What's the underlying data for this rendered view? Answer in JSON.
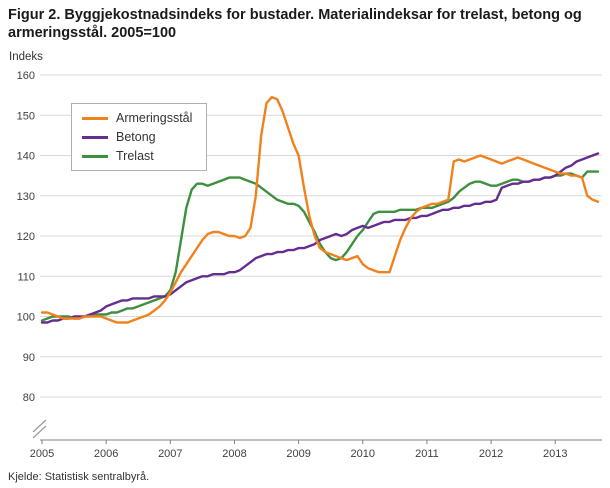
{
  "source": "Kjelde: Statistisk sentralbyrå.",
  "chart_data": {
    "type": "line",
    "title": "Figur 2. Byggjekostnadsindeks for bustader. Materialindeksar for trelast, betong og armeringsstål. 2005=100",
    "xlabel": "",
    "ylabel": "Indeks",
    "ylim": [
      80,
      160
    ],
    "yticks": [
      160,
      150,
      140,
      130,
      120,
      110,
      100,
      90,
      80
    ],
    "xticks": [
      2005,
      2006,
      2007,
      2008,
      2009,
      2010,
      2011,
      2012,
      2013
    ],
    "x_start": "2005-01",
    "x_frequency": "monthly",
    "grid": "horizontal",
    "axis_break": true,
    "legend_position": "upper-left",
    "series": [
      {
        "name": "Armeringsstål",
        "color": "#f0821e",
        "values": [
          101,
          101,
          100.5,
          100,
          99.5,
          99.5,
          99.5,
          99.5,
          100,
          100,
          100,
          100,
          99.5,
          99,
          98.5,
          98.5,
          98.5,
          99,
          99.5,
          100,
          100.5,
          101.5,
          102.5,
          104,
          106,
          108.5,
          111,
          113,
          115,
          117,
          119,
          120.5,
          121,
          121,
          120.5,
          120,
          120,
          119.5,
          120,
          122,
          130,
          145,
          153,
          154.5,
          154,
          151,
          147,
          143,
          140,
          132,
          125,
          120,
          117,
          116,
          115.5,
          115,
          114.5,
          114,
          114.5,
          115,
          113,
          112,
          111.5,
          111,
          111,
          111,
          115,
          119,
          122,
          124.5,
          126,
          127,
          127.5,
          128,
          128,
          128.5,
          129,
          138.5,
          139,
          138.5,
          139,
          139.5,
          140,
          139.5,
          139,
          138.5,
          138,
          138.5,
          139,
          139.5,
          139,
          138.5,
          138,
          137.5,
          137,
          136.5,
          136,
          135.5,
          135.5,
          135,
          135,
          134.5,
          130,
          129,
          128.5
        ]
      },
      {
        "name": "Betong",
        "color": "#662d91",
        "values": [
          98.5,
          98.5,
          99,
          99,
          99.5,
          99.5,
          100,
          100,
          100,
          100.5,
          101,
          101.5,
          102.5,
          103,
          103.5,
          104,
          104,
          104.5,
          104.5,
          104.5,
          104.5,
          105,
          105,
          105,
          105.5,
          106.5,
          107.5,
          108.5,
          109,
          109.5,
          110,
          110,
          110.5,
          110.5,
          110.5,
          111,
          111,
          111.5,
          112.5,
          113.5,
          114.5,
          115,
          115.5,
          115.5,
          116,
          116,
          116.5,
          116.5,
          117,
          117,
          117.5,
          118,
          119,
          119.5,
          120,
          120.5,
          120,
          120.5,
          121.5,
          122,
          122.5,
          122,
          122.5,
          123,
          123.5,
          123.5,
          124,
          124,
          124,
          124.5,
          124.5,
          125,
          125,
          125.5,
          126,
          126.5,
          126.5,
          127,
          127,
          127.5,
          127.5,
          128,
          128,
          128.5,
          128.5,
          129,
          132,
          132.5,
          133,
          133,
          133.5,
          133.5,
          134,
          134,
          134.5,
          134.5,
          135,
          136,
          137,
          137.5,
          138.5,
          139,
          139.5,
          140,
          140.5
        ]
      },
      {
        "name": "Trelast",
        "color": "#3e8f3e",
        "values": [
          99,
          99.5,
          100,
          100,
          100,
          100,
          99.5,
          99.5,
          100,
          100.5,
          100.5,
          100.5,
          100.5,
          101,
          101,
          101.5,
          102,
          102,
          102.5,
          103,
          103.5,
          104,
          104.5,
          105,
          106.5,
          111,
          119,
          127,
          131.5,
          133,
          133,
          132.5,
          133,
          133.5,
          134,
          134.5,
          134.5,
          134.5,
          134,
          133.5,
          133,
          132,
          131,
          130,
          129,
          128.5,
          128,
          128,
          127.5,
          126,
          123.5,
          121,
          118,
          116,
          114.5,
          114,
          114.5,
          116,
          118,
          120,
          121.5,
          123.5,
          125.5,
          126,
          126,
          126,
          126,
          126.5,
          126.5,
          126.5,
          126.5,
          127,
          127,
          127,
          127.5,
          128,
          128.5,
          129.5,
          131,
          132,
          133,
          133.5,
          133.5,
          133,
          132.5,
          132.5,
          133,
          133.5,
          134,
          134,
          133.5,
          133.5,
          134,
          134,
          134.5,
          134.5,
          135,
          135,
          135.5,
          135.5,
          135,
          134.5,
          136,
          136,
          136
        ]
      }
    ]
  }
}
